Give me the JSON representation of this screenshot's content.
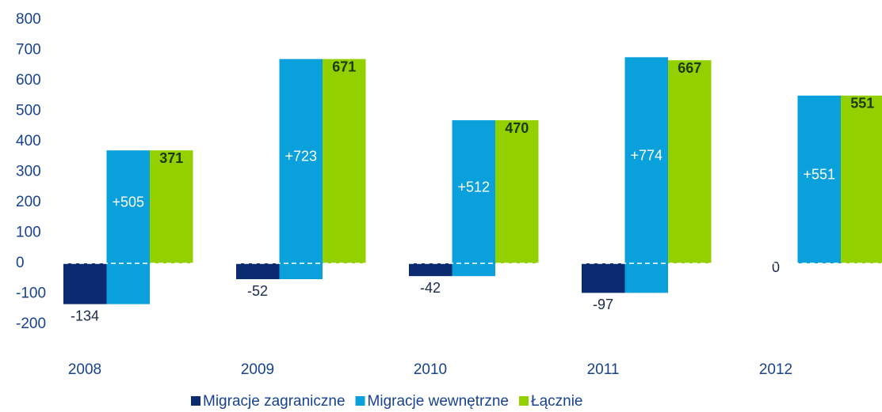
{
  "chart_data": {
    "type": "bar",
    "categories": [
      "2008",
      "2009",
      "2010",
      "2011",
      "2012"
    ],
    "series": [
      {
        "name": "Migracje zagraniczne",
        "color": "#0b2a6f",
        "values": [
          -134,
          -52,
          -42,
          -97,
          0
        ]
      },
      {
        "name": "Migracje wewnętrzne",
        "color": "#0aa0dc",
        "values": [
          505,
          723,
          512,
          774,
          551
        ],
        "value_labels": [
          "+505",
          "+723",
          "+512",
          "+774",
          "+551"
        ]
      },
      {
        "name": "Łącznie",
        "color": "#92d000",
        "values": [
          371,
          671,
          470,
          667,
          551
        ]
      }
    ],
    "ylim": [
      -200,
      800
    ],
    "yticks": [
      -200,
      -100,
      0,
      100,
      200,
      300,
      400,
      500,
      600,
      700,
      800
    ]
  }
}
